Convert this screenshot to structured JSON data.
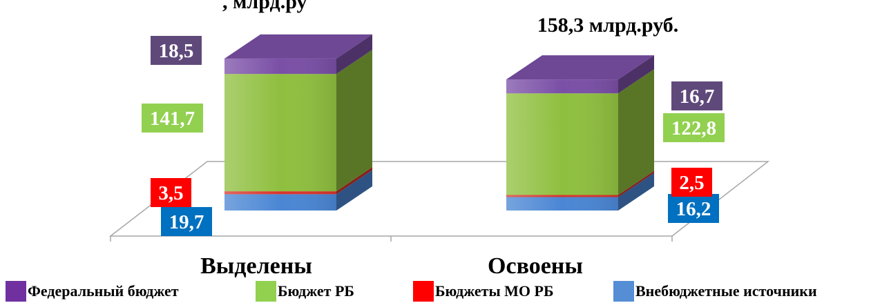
{
  "chart_data": {
    "type": "bar",
    "stacked": true,
    "three_d": true,
    "categories": [
      "Выделены",
      "Освоены"
    ],
    "totals": [
      "",
      "158,3 млрд.руб."
    ],
    "series": [
      {
        "name": "Внебюджетные источники",
        "values": [
          19.7,
          16.2
        ],
        "labels": [
          "19,7",
          "16,2"
        ],
        "color": "#4a86d4",
        "label_bg": "#0070c0"
      },
      {
        "name": "Бюджеты МО РБ",
        "values": [
          3.5,
          2.5
        ],
        "labels": [
          "3,5",
          "2,5"
        ],
        "color": "#d9342b",
        "label_bg": "#ff0000"
      },
      {
        "name": "Бюджет РБ",
        "values": [
          141.7,
          122.8
        ],
        "labels": [
          "141,7",
          "122,8"
        ],
        "color": "#8fbf3f",
        "label_bg": "#92d050"
      },
      {
        "name": "Федеральный бюджет",
        "values": [
          18.5,
          16.7
        ],
        "labels": [
          "18,5",
          "16,7"
        ],
        "color": "#7a4fa6",
        "label_bg": "#5f497a"
      }
    ],
    "title_partial": ",  млрд.ру",
    "legend": {
      "position": "bottom",
      "items": [
        {
          "name": "Федеральный бюджет",
          "color": "#7030a0"
        },
        {
          "name": "Бюджет РБ",
          "color": "#92d050"
        },
        {
          "name": "Бюджеты МО РБ",
          "color": "#ff0000"
        },
        {
          "name": "Внебюджетные источники",
          "color": "#558ed5"
        }
      ]
    }
  }
}
